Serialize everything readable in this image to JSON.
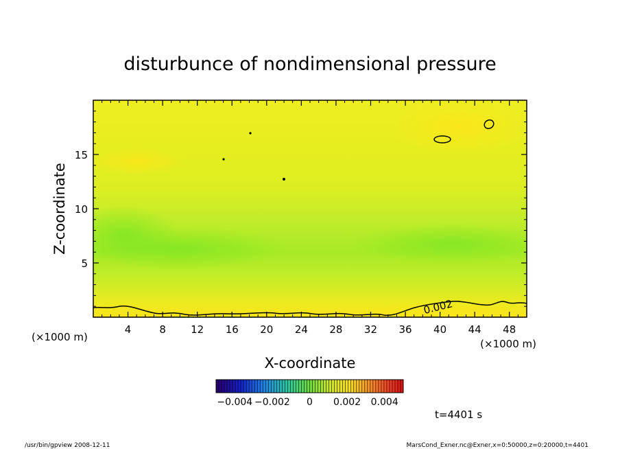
{
  "chart_data": {
    "type": "heatmap",
    "title": "disturbunce of nondimensional pressure",
    "xlabel": "X-coordinate",
    "ylabel": "Z-coordinate",
    "x_units_left": "(×1000 m)",
    "x_units_right": "(×1000 m)",
    "xlim": [
      0,
      50
    ],
    "ylim": [
      0,
      20
    ],
    "x_ticks": [
      4,
      8,
      12,
      16,
      20,
      24,
      28,
      32,
      36,
      40,
      44,
      48
    ],
    "y_ticks": [
      5,
      10,
      15
    ],
    "contour_label": "0.002",
    "colorbar": {
      "min": -0.005,
      "max": 0.005,
      "tick_labels": [
        "−0.004",
        "−0.002",
        "0",
        "0.002",
        "0.004"
      ],
      "tick_values": [
        -0.004,
        -0.002,
        0,
        0.002,
        0.004
      ]
    },
    "time_label": "t=4401 s"
  },
  "footer": {
    "left": "/usr/bin/gpview   2008-12-11",
    "right": "MarsCond_Exner.nc@Exner,x=0:50000,z=0:20000,t=4401"
  },
  "colors": {
    "field_low": "#7ee622",
    "field_mid": "#d6ee22",
    "field_high": "#f8e81a"
  }
}
